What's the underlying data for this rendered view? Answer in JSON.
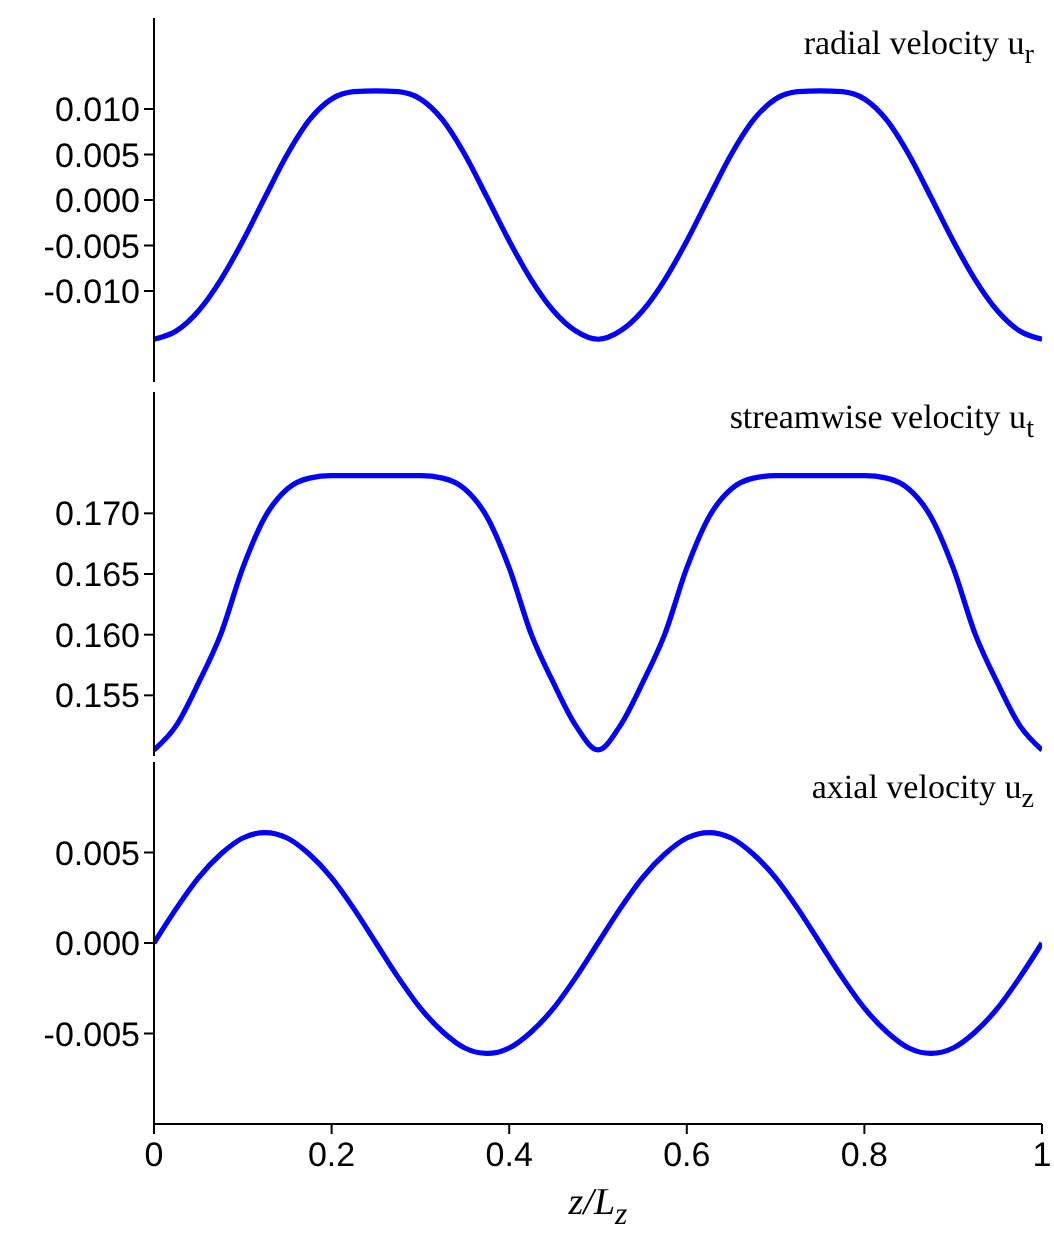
{
  "chart_data": [
    {
      "type": "line",
      "annotations": [
        "radial velocity u$_{r}$"
      ],
      "x": [
        0,
        0.025,
        0.05,
        0.075,
        0.1,
        0.125,
        0.15,
        0.175,
        0.2,
        0.225,
        0.25,
        0.275,
        0.3,
        0.325,
        0.35,
        0.375,
        0.4,
        0.425,
        0.45,
        0.475,
        0.5,
        0.525,
        0.55,
        0.575,
        0.6,
        0.625,
        0.65,
        0.675,
        0.7,
        0.725,
        0.75,
        0.775,
        0.8,
        0.825,
        0.85,
        0.875,
        0.9,
        0.925,
        0.95,
        0.975,
        1
      ],
      "series": [
        {
          "color": "#0000ff",
          "values": [
            -0.0153,
            -0.0144,
            -0.0122,
            -0.0088,
            -0.0045,
            0.0003,
            0.005,
            0.0088,
            0.0111,
            0.0119,
            0.012,
            0.0119,
            0.0111,
            0.0088,
            0.005,
            0.0003,
            -0.0045,
            -0.0088,
            -0.0122,
            -0.0144,
            -0.0153,
            -0.0144,
            -0.0122,
            -0.0088,
            -0.0045,
            0.0003,
            0.005,
            0.0088,
            0.0111,
            0.0119,
            0.012,
            0.0119,
            0.0111,
            0.0088,
            0.005,
            0.0003,
            -0.0045,
            -0.0088,
            -0.0122,
            -0.0144,
            -0.0153
          ]
        }
      ],
      "xlim": [
        0,
        1
      ],
      "xticks": [
        {
          "value": 0,
          "label": null
        },
        {
          "value": 0.2,
          "label": null
        },
        {
          "value": 0.4,
          "label": null
        },
        {
          "value": 0.6,
          "label": null
        },
        {
          "value": 0.8,
          "label": null
        },
        {
          "value": 1,
          "label": null
        }
      ],
      "ylim": [
        -0.02,
        0.02
      ],
      "yticks": [
        {
          "value": -0.01,
          "label": "-0.010"
        },
        {
          "value": -0.005,
          "label": "-0.005"
        },
        {
          "value": 0,
          "label": "0.000"
        },
        {
          "value": 0.005,
          "label": "0.005"
        },
        {
          "value": 0.01,
          "label": "0.010"
        }
      ],
      "tick_labels": "y"
    },
    {
      "type": "line",
      "annotations": [
        "streamwise velocity u$_{t}$"
      ],
      "x": [
        0,
        0.025,
        0.05,
        0.075,
        0.1,
        0.125,
        0.15,
        0.175,
        0.2,
        0.225,
        0.25,
        0.275,
        0.3,
        0.325,
        0.35,
        0.375,
        0.4,
        0.425,
        0.45,
        0.475,
        0.5,
        0.525,
        0.55,
        0.575,
        0.6,
        0.625,
        0.65,
        0.675,
        0.7,
        0.725,
        0.75,
        0.775,
        0.8,
        0.825,
        0.85,
        0.875,
        0.9,
        0.925,
        0.95,
        0.975,
        1
      ],
      "series": [
        {
          "color": "#0000ff",
          "values": [
            0.1505,
            0.1525,
            0.156,
            0.16,
            0.1655,
            0.1697,
            0.172,
            0.1729,
            0.1731,
            0.1731,
            0.1731,
            0.1731,
            0.1731,
            0.1729,
            0.172,
            0.1697,
            0.1655,
            0.16,
            0.156,
            0.1525,
            0.1505,
            0.1525,
            0.156,
            0.16,
            0.1655,
            0.1697,
            0.172,
            0.1729,
            0.1731,
            0.1731,
            0.1731,
            0.1731,
            0.1731,
            0.1729,
            0.172,
            0.1697,
            0.1655,
            0.16,
            0.156,
            0.1525,
            0.1505
          ]
        }
      ],
      "xlim": [
        0,
        1
      ],
      "xticks": [
        {
          "value": 0,
          "label": null
        },
        {
          "value": 0.2,
          "label": null
        },
        {
          "value": 0.4,
          "label": null
        },
        {
          "value": 0.6,
          "label": null
        },
        {
          "value": 0.8,
          "label": null
        },
        {
          "value": 1,
          "label": null
        }
      ],
      "ylim": [
        0.15,
        0.18
      ],
      "yticks": [
        {
          "value": 0.155,
          "label": "0.155"
        },
        {
          "value": 0.16,
          "label": "0.160"
        },
        {
          "value": 0.165,
          "label": "0.165"
        },
        {
          "value": 0.17,
          "label": "0.170"
        }
      ],
      "tick_labels": "y"
    },
    {
      "type": "line",
      "annotations": [
        "axial velocity u$_{z}$"
      ],
      "xlabel": "z/L$_{z}$",
      "x": [
        0,
        0.025,
        0.05,
        0.075,
        0.1,
        0.125,
        0.15,
        0.175,
        0.2,
        0.225,
        0.25,
        0.275,
        0.3,
        0.325,
        0.35,
        0.375,
        0.4,
        0.425,
        0.45,
        0.475,
        0.5,
        0.525,
        0.55,
        0.575,
        0.6,
        0.625,
        0.65,
        0.675,
        0.7,
        0.725,
        0.75,
        0.775,
        0.8,
        0.825,
        0.85,
        0.875,
        0.9,
        0.925,
        0.95,
        0.975,
        1
      ],
      "series": [
        {
          "color": "#0000ff",
          "values": [
            0,
            0.0019,
            0.0036,
            0.0049,
            0.0058,
            0.0061,
            0.0058,
            0.0049,
            0.0036,
            0.0019,
            0,
            -0.0019,
            -0.0036,
            -0.0049,
            -0.0058,
            -0.0061,
            -0.0058,
            -0.0049,
            -0.0036,
            -0.0019,
            0,
            0.0019,
            0.0036,
            0.0049,
            0.0058,
            0.0061,
            0.0058,
            0.0049,
            0.0036,
            0.0019,
            0,
            -0.0019,
            -0.0036,
            -0.0049,
            -0.0058,
            -0.0061,
            -0.0058,
            -0.0049,
            -0.0036,
            -0.0019,
            0
          ]
        }
      ],
      "xlim": [
        0,
        1
      ],
      "xticks": [
        0,
        {
          "value": 0.2,
          "label": "0.2"
        },
        {
          "value": 0.4,
          "label": "0.4"
        },
        {
          "value": 0.6,
          "label": "0.6"
        },
        {
          "value": 0.8,
          "label": "0.8"
        },
        1
      ],
      "ylim": [
        -0.01,
        0.01
      ],
      "yticks": [
        {
          "value": -0.005,
          "label": "-0.005"
        },
        {
          "value": 0,
          "label": "0.000"
        },
        {
          "value": 0.005,
          "label": "0.005"
        }
      ]
    }
  ]
}
